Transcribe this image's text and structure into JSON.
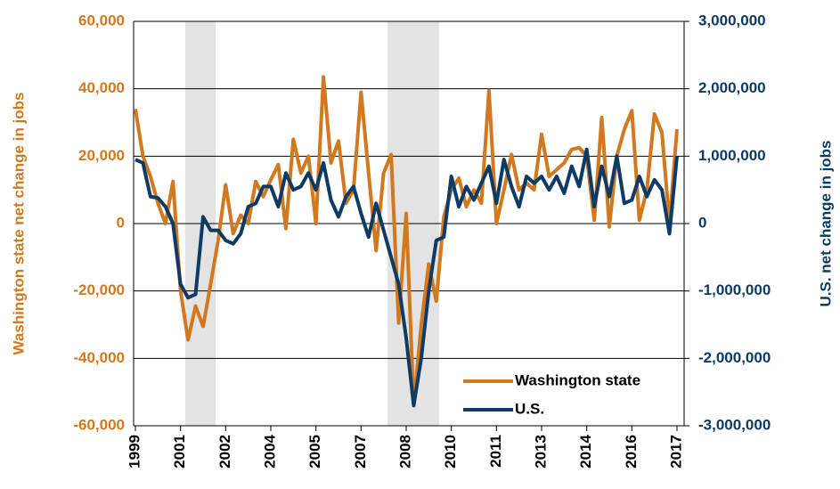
{
  "chart_data": {
    "type": "line",
    "y_label": "Washington state net change in jobs",
    "y2_label": "U.S.  net change in jobs",
    "categories": [
      "1999",
      null,
      null,
      null,
      null,
      null,
      "2001",
      null,
      null,
      null,
      null,
      null,
      "2002",
      null,
      null,
      null,
      null,
      null,
      "2004",
      null,
      null,
      null,
      null,
      null,
      "2005",
      null,
      null,
      null,
      null,
      null,
      "2007",
      null,
      null,
      null,
      null,
      null,
      "2008",
      null,
      null,
      null,
      null,
      null,
      "2010",
      null,
      null,
      null,
      null,
      null,
      "2011",
      null,
      null,
      null,
      null,
      null,
      "2013",
      null,
      null,
      null,
      null,
      null,
      "2014",
      null,
      null,
      null,
      null,
      null,
      "2016",
      null,
      null,
      null,
      null,
      null,
      "2017"
    ],
    "series": [
      {
        "name": "Washington state",
        "color": "#d2781e",
        "axis": "y",
        "values": [
          34000,
          20000,
          14000,
          6000,
          0,
          12500,
          -20000,
          -34500,
          -24500,
          -30500,
          -18000,
          -5000,
          11500,
          -3000,
          2500,
          0,
          12500,
          8000,
          13000,
          17500,
          -1500,
          25000,
          15000,
          20000,
          0,
          43500,
          18000,
          24500,
          6000,
          10000,
          39000,
          15000,
          -8000,
          15000,
          20500,
          -29500,
          3000,
          -54000,
          -30000,
          -12000,
          -23000,
          2000,
          10000,
          13500,
          5000,
          10000,
          6000,
          39500,
          0,
          10000,
          20500,
          10000,
          12000,
          10000,
          26500,
          14000,
          16000,
          18000,
          22000,
          22500,
          20000,
          1000,
          31500,
          -1000,
          20000,
          28000,
          33500,
          1000,
          10000,
          32500,
          27000,
          0,
          28000
        ]
      },
      {
        "name": "U.S.",
        "color": "#0d3b66",
        "axis": "y2",
        "values": [
          950000,
          900000,
          400000,
          380000,
          250000,
          0,
          -900000,
          -1100000,
          -1050000,
          100000,
          -100000,
          -100000,
          -250000,
          -300000,
          -150000,
          250000,
          300000,
          550000,
          550000,
          250000,
          750000,
          500000,
          550000,
          750000,
          500000,
          900000,
          350000,
          100000,
          400000,
          550000,
          150000,
          -200000,
          300000,
          -100000,
          -500000,
          -900000,
          -1700000,
          -2700000,
          -2000000,
          -1000000,
          -250000,
          -200000,
          700000,
          250000,
          550000,
          350000,
          600000,
          850000,
          300000,
          950000,
          550000,
          250000,
          700000,
          600000,
          700000,
          500000,
          700000,
          450000,
          850000,
          550000,
          1100000,
          250000,
          850000,
          400000,
          1000000,
          300000,
          350000,
          700000,
          400000,
          650000,
          500000,
          -150000,
          1000000
        ]
      }
    ],
    "ylim": [
      -60000,
      60000
    ],
    "yticks": [
      {
        "value": -60000,
        "label": "-60,000"
      },
      {
        "value": -40000,
        "label": "-40,000"
      },
      {
        "value": -20000,
        "label": "-20,000"
      },
      0,
      {
        "value": 20000,
        "label": "20,000"
      },
      {
        "value": 40000,
        "label": "40,000"
      },
      {
        "value": 60000,
        "label": "60,000"
      }
    ],
    "y2lim": [
      -3000000,
      3000000
    ],
    "y2ticks": [
      {
        "value": -3000000,
        "label": "-3,000,000"
      },
      {
        "value": -2000000,
        "label": "-2,000,000"
      },
      {
        "value": -1000000,
        "label": "-1,000,000"
      },
      0,
      {
        "value": 1000000,
        "label": "1,000,000"
      },
      {
        "value": 2000000,
        "label": "2,000,000"
      },
      {
        "value": 3000000,
        "label": "3,000,000"
      }
    ],
    "grid": true,
    "legend": "lower right"
  }
}
